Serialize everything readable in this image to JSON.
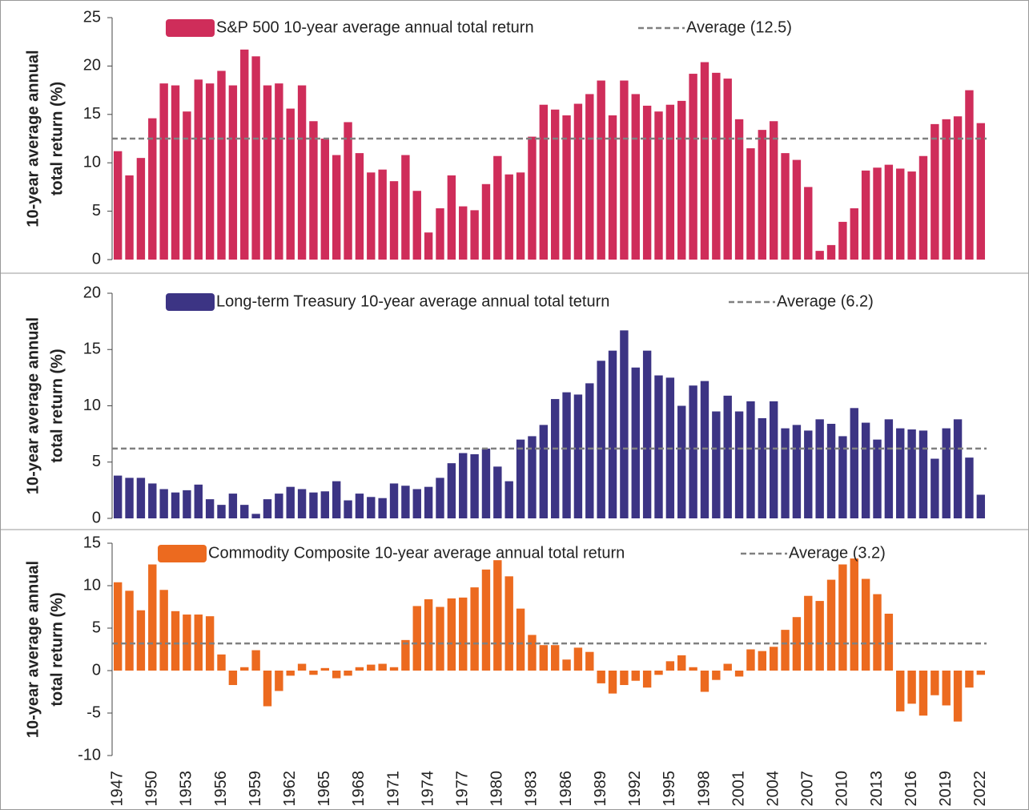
{
  "chart_data": [
    {
      "type": "bar",
      "ylabel": [
        "10-year average annual",
        "total return (%)"
      ],
      "series": [
        {
          "name": "S&P 500 10-year average annual total return",
          "color": "#cf2d5a",
          "values": [
            11.2,
            8.7,
            10.5,
            14.6,
            18.2,
            18.0,
            15.3,
            18.6,
            18.2,
            19.5,
            18.0,
            21.7,
            21.0,
            18.0,
            18.2,
            15.6,
            18.0,
            14.3,
            12.5,
            10.8,
            14.2,
            11.0,
            9.0,
            9.3,
            8.1,
            10.8,
            7.1,
            2.8,
            5.3,
            8.7,
            5.5,
            5.1,
            7.8,
            10.7,
            8.8,
            9.0,
            12.7,
            16.0,
            15.5,
            14.9,
            16.1,
            17.1,
            18.5,
            14.9,
            18.5,
            17.1,
            15.9,
            15.3,
            16.0,
            16.4,
            19.2,
            20.4,
            19.3,
            18.7,
            14.5,
            11.5,
            13.4,
            14.3,
            11.0,
            10.3,
            7.5,
            0.9,
            1.5,
            3.9,
            5.3,
            9.2,
            9.5,
            9.8,
            9.4,
            9.1,
            10.7,
            14.0,
            14.5,
            14.8,
            17.5,
            14.1
          ]
        }
      ],
      "reference_line": {
        "name": "Average (12.5)",
        "value": 12.5,
        "color": "#808080"
      },
      "ylim": [
        0,
        25
      ],
      "yticks": [
        0,
        5,
        10,
        15,
        20,
        25
      ]
    },
    {
      "type": "bar",
      "ylabel": [
        "10-year average annual",
        "total return (%)"
      ],
      "series": [
        {
          "name": "Long-term Treasury 10-year average annual total teturn",
          "color": "#3c3484",
          "values": [
            3.8,
            3.6,
            3.6,
            3.1,
            2.6,
            2.3,
            2.5,
            3.0,
            1.7,
            1.2,
            2.2,
            1.2,
            0.4,
            1.7,
            2.2,
            2.8,
            2.6,
            2.3,
            2.4,
            3.3,
            1.6,
            2.2,
            1.9,
            1.8,
            3.1,
            2.9,
            2.6,
            2.8,
            3.6,
            4.9,
            5.8,
            5.7,
            6.2,
            4.6,
            3.3,
            7.0,
            7.3,
            8.3,
            10.6,
            11.2,
            11.0,
            12.0,
            14.0,
            14.9,
            16.7,
            13.4,
            14.9,
            12.7,
            12.5,
            10.0,
            11.8,
            12.2,
            9.5,
            10.9,
            9.5,
            10.4,
            8.9,
            10.4,
            8.0,
            8.3,
            7.8,
            8.8,
            8.4,
            7.3,
            9.8,
            8.5,
            7.0,
            8.8,
            8.0,
            7.9,
            7.8,
            5.3,
            8.0,
            8.8,
            5.4,
            2.1
          ]
        }
      ],
      "reference_line": {
        "name": "Average (6.2)",
        "value": 6.2,
        "color": "#808080"
      },
      "ylim": [
        0,
        20
      ],
      "yticks": [
        0,
        5,
        10,
        15,
        20
      ]
    },
    {
      "type": "bar",
      "ylabel": [
        "10-year average annual",
        "total return (%)"
      ],
      "categories": [
        "1947",
        null,
        null,
        "1950",
        null,
        null,
        "1953",
        null,
        null,
        "1956",
        null,
        null,
        "1959",
        null,
        null,
        "1962",
        null,
        null,
        "1965",
        null,
        null,
        "1968",
        null,
        null,
        "1971",
        null,
        null,
        "1974",
        null,
        null,
        "1977",
        null,
        null,
        "1980",
        null,
        null,
        "1983",
        null,
        null,
        "1986",
        null,
        null,
        "1989",
        null,
        null,
        "1992",
        null,
        null,
        "1995",
        null,
        null,
        "1998",
        null,
        null,
        "2001",
        null,
        null,
        "2004",
        null,
        null,
        "2007",
        null,
        null,
        "2010",
        null,
        null,
        "2013",
        null,
        null,
        "2016",
        null,
        null,
        "2019",
        null,
        null,
        "2022"
      ],
      "series": [
        {
          "name": "Commodity Composite 10-year average annual total return",
          "color": "#ec6a1f",
          "values": [
            10.4,
            9.4,
            7.1,
            12.5,
            9.5,
            7.0,
            6.6,
            6.6,
            6.4,
            1.9,
            -1.7,
            0.4,
            2.4,
            -4.2,
            -2.4,
            -0.6,
            0.8,
            -0.5,
            0.3,
            -0.9,
            -0.6,
            0.4,
            0.7,
            0.8,
            0.4,
            3.6,
            7.6,
            8.4,
            7.5,
            8.5,
            8.6,
            9.8,
            11.9,
            13.0,
            11.1,
            7.3,
            4.2,
            3.0,
            3.0,
            1.3,
            2.7,
            2.2,
            -1.5,
            -2.7,
            -1.7,
            -1.2,
            -2.0,
            -0.5,
            1.1,
            1.8,
            0.4,
            -2.5,
            -1.1,
            0.8,
            -0.7,
            2.5,
            2.3,
            2.8,
            4.8,
            6.3,
            8.8,
            8.2,
            10.7,
            12.5,
            13.2,
            10.8,
            9.0,
            6.7,
            -4.8,
            -3.9,
            -5.3,
            -2.9,
            -4.1,
            -6.0,
            -2.0,
            -0.5
          ]
        }
      ],
      "reference_line": {
        "name": "Average (3.2)",
        "value": 3.2,
        "color": "#808080"
      },
      "ylim": [
        -10,
        15
      ],
      "yticks": [
        -10,
        -5,
        0,
        5,
        10,
        15
      ]
    }
  ]
}
